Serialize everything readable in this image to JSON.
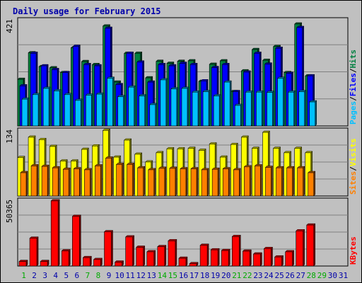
{
  "chart_data": {
    "type": "bar",
    "title": "Daily usage for February 2015",
    "x_labels": [
      "1",
      "2",
      "3",
      "4",
      "5",
      "6",
      "7",
      "8",
      "9",
      "10",
      "11",
      "12",
      "13",
      "14",
      "15",
      "16",
      "17",
      "18",
      "19",
      "20",
      "21",
      "22",
      "23",
      "24",
      "25",
      "26",
      "27",
      "28",
      "29",
      "30",
      "31"
    ],
    "weekend_days": [
      1,
      7,
      8,
      14,
      15,
      21,
      22,
      28,
      29
    ],
    "panels": [
      {
        "name": "Pages / Files / Hits",
        "max_label": "421",
        "ymax": 421,
        "series": [
          {
            "name": "Hits",
            "color": "#008040",
            "values": [
              186,
              292,
              237,
              232,
              213,
              312,
              257,
              245,
              399,
              175,
              290,
              290,
              192,
              258,
              250,
              258,
              260,
              178,
              246,
              260,
              137,
              220,
              305,
              262,
              317,
              213,
              407,
              200
            ]
          },
          {
            "name": "Files",
            "color": "#0000ff",
            "values": [
              160,
              290,
              240,
              225,
              213,
              318,
              245,
              240,
              390,
              165,
              290,
              255,
              175,
              245,
              240,
              250,
              245,
              180,
              233,
              245,
              137,
              215,
              290,
              247,
              310,
              210,
              393,
              200
            ]
          },
          {
            "name": "Pages",
            "color": "#00c0ff",
            "values": [
              107,
              125,
              150,
              140,
              125,
              102,
              123,
              127,
              190,
              117,
              155,
              120,
              85,
              184,
              148,
              150,
              135,
              137,
              120,
              175,
              82,
              135,
              135,
              134,
              190,
              135,
              137,
              96
            ]
          }
        ]
      },
      {
        "name": "Sites / Visits",
        "max_label": "134",
        "ymax": 134,
        "series": [
          {
            "name": "Visits",
            "color": "#ffff00",
            "values": [
              79,
              121,
              116,
              102,
              72,
              72,
              96,
              103,
              135,
              80,
              115,
              86,
              70,
              89,
              97,
              97,
              98,
              94,
              107,
              80,
              106,
              121,
              98,
              131,
              98,
              89,
              98,
              89
            ]
          },
          {
            "name": "Sites",
            "color": "#ff8000",
            "values": [
              48,
              62,
              61,
              58,
              55,
              56,
              54,
              62,
              78,
              65,
              65,
              58,
              54,
              57,
              57,
              56,
              56,
              54,
              55,
              56,
              54,
              60,
              62,
              59,
              58,
              58,
              58,
              48
            ]
          }
        ]
      },
      {
        "name": "KBytes",
        "max_label": "50365",
        "ymax": 50365,
        "series": [
          {
            "name": "KBytes",
            "color": "#ff0000",
            "values": [
              3500,
              21500,
              3500,
              50400,
              11700,
              38400,
              6500,
              5000,
              26500,
              3000,
              22500,
              14500,
              11000,
              15000,
              19500,
              6000,
              1800,
              16000,
              12500,
              12000,
              22800,
              11500,
              9300,
              13500,
              7000,
              11000,
              27200,
              31700
            ]
          }
        ]
      }
    ],
    "legend_right": [
      {
        "text": "Pages",
        "color": "#00c0ff"
      },
      {
        "text": "/",
        "color": "#000000"
      },
      {
        "text": "Files",
        "color": "#0000ff"
      },
      {
        "text": "/",
        "color": "#000000"
      },
      {
        "text": "Hits",
        "color": "#008040"
      }
    ],
    "legend_right_2": [
      {
        "text": "Sites",
        "color": "#ff8000"
      },
      {
        "text": "/",
        "color": "#000000"
      },
      {
        "text": "Visits",
        "color": "#ffff00"
      }
    ],
    "legend_right_3": [
      {
        "text": "KBytes",
        "color": "#ff0000"
      }
    ]
  },
  "colors": {
    "background": "#c0c0c0",
    "plot_background": "#c0c0c0",
    "title": "#0000aa",
    "weekday_label": "#0000aa",
    "weekend_label": "#00aa00"
  }
}
